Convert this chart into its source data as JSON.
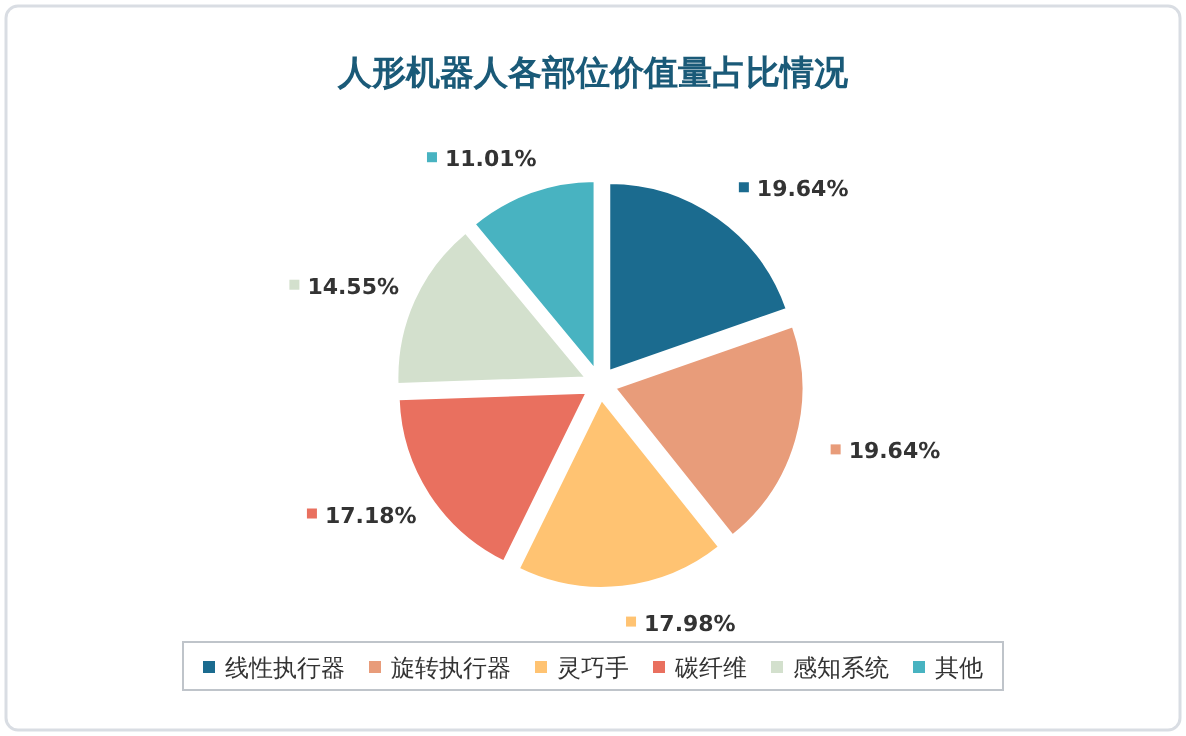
{
  "chart_data": {
    "type": "pie",
    "title": "人形机器人各部位价值量占比情况",
    "categories": [
      "线性执行器",
      "旋转执行器",
      "灵巧手",
      "碳纤维",
      "感知系统",
      "其他"
    ],
    "values": [
      19.64,
      19.64,
      17.98,
      17.18,
      14.55,
      11.01
    ],
    "colors": [
      "#1b6b8f",
      "#e89c7a",
      "#ffc372",
      "#e9705f",
      "#d3e0cd",
      "#48b3c1"
    ],
    "value_labels": [
      "19.64%",
      "19.64%",
      "17.98%",
      "17.18%",
      "14.55%",
      "11.01%"
    ],
    "legend": "bottom"
  }
}
